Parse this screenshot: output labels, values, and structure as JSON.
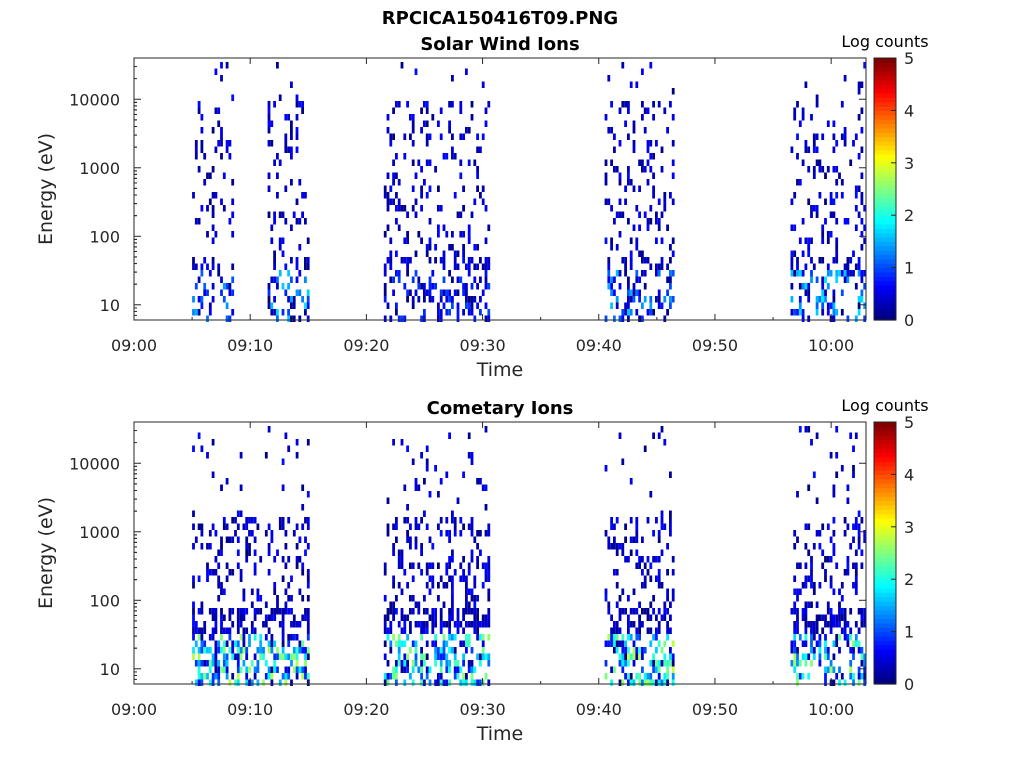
{
  "figure_title": "RPCICA150416T09.PNG",
  "colorbar_label": "Log counts",
  "colormap": "jet",
  "chart_data": [
    {
      "type": "heatmap",
      "title": "Solar Wind Ions",
      "xlabel": "Time",
      "ylabel": "Energy (eV)",
      "yscale": "log",
      "ylim": [
        6,
        40000
      ],
      "xlim": [
        "09:00",
        "10:03"
      ],
      "x_ticks": [
        "09:00",
        "09:10",
        "09:20",
        "09:30",
        "09:40",
        "09:50",
        "10:00"
      ],
      "y_ticks": [
        "10",
        "100",
        "1000",
        "10000"
      ],
      "color_range": [
        0,
        5
      ],
      "color_ticks": [
        "0",
        "1",
        "2",
        "3",
        "4",
        "5"
      ],
      "bursts": [
        {
          "start_min": 5.0,
          "end_min": 8.5,
          "max_log_counts": 1.5
        },
        {
          "start_min": 11.5,
          "end_min": 15.0,
          "max_log_counts": 1.8
        },
        {
          "start_min": 21.5,
          "end_min": 30.5,
          "max_log_counts": 1.0
        },
        {
          "start_min": 40.5,
          "end_min": 46.5,
          "max_log_counts": 1.6
        },
        {
          "start_min": 56.5,
          "end_min": 63.0,
          "max_log_counts": 1.8
        }
      ]
    },
    {
      "type": "heatmap",
      "title": "Cometary Ions",
      "xlabel": "Time",
      "ylabel": "Energy (eV)",
      "yscale": "log",
      "ylim": [
        6,
        40000
      ],
      "xlim": [
        "09:00",
        "10:03"
      ],
      "x_ticks": [
        "09:00",
        "09:10",
        "09:20",
        "09:30",
        "09:40",
        "09:50",
        "10:00"
      ],
      "y_ticks": [
        "10",
        "100",
        "1000",
        "10000"
      ],
      "color_range": [
        0,
        5
      ],
      "color_ticks": [
        "0",
        "1",
        "2",
        "3",
        "4",
        "5"
      ],
      "bursts": [
        {
          "start_min": 5.0,
          "end_min": 15.0,
          "max_log_counts": 2.8
        },
        {
          "start_min": 21.5,
          "end_min": 30.5,
          "max_log_counts": 2.6
        },
        {
          "start_min": 40.5,
          "end_min": 46.5,
          "max_log_counts": 2.9
        },
        {
          "start_min": 56.5,
          "end_min": 63.0,
          "max_log_counts": 2.7
        }
      ]
    }
  ]
}
